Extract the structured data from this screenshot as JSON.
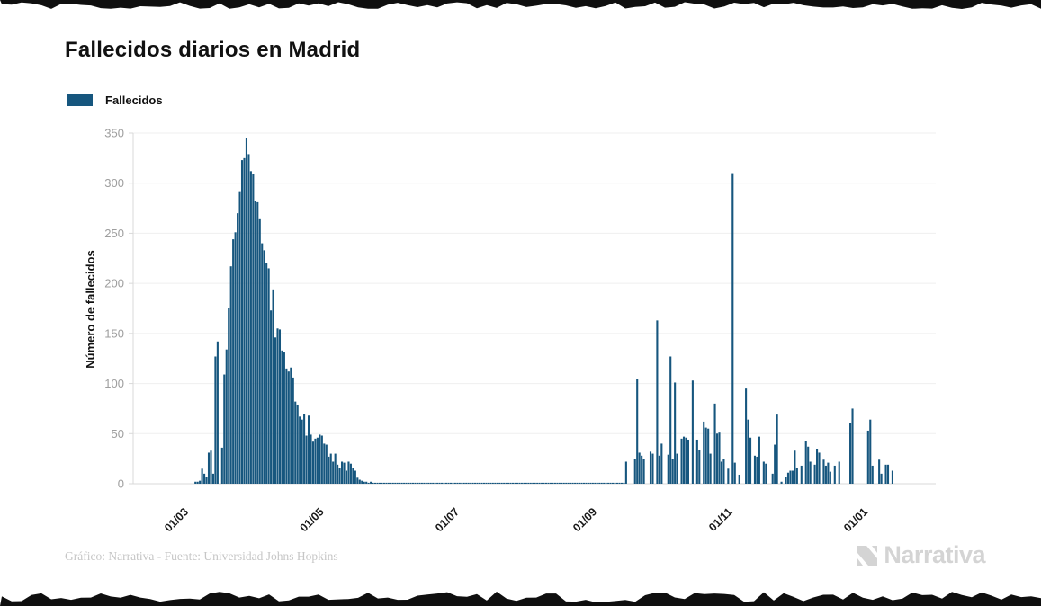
{
  "title": "Fallecidos diarios en Madrid",
  "legend": {
    "label": "Fallecidos"
  },
  "footer": {
    "credit": "Gráfico: Narrativa - Fuente: Universidad Johns Hopkins",
    "brand": "Narrativa"
  },
  "colors": {
    "bar": "#16567e",
    "grid": "#efefef",
    "axis": "#d9d9d9",
    "ytick_text": "#9e9e9e",
    "xtick_text": "#1a1a1a",
    "torn_edge": "#0f0f0f"
  },
  "chart_data": {
    "type": "bar",
    "title": "Fallecidos diarios en Madrid",
    "xlabel": "",
    "ylabel": "Número de fallecidos",
    "ylim": [
      0,
      350
    ],
    "yticks": [
      0,
      50,
      100,
      150,
      200,
      250,
      300,
      350
    ],
    "grid": "horizontal",
    "legend_position": "top-left",
    "x_ticks": [
      {
        "label": "01/03",
        "day_offset": 0
      },
      {
        "label": "01/05",
        "day_offset": 61
      },
      {
        "label": "01/07",
        "day_offset": 122
      },
      {
        "label": "01/09",
        "day_offset": 184
      },
      {
        "label": "01/11",
        "day_offset": 245
      },
      {
        "label": "01/01",
        "day_offset": 306
      }
    ],
    "start_date": "2020-03-10",
    "start_day_offset": 9,
    "series": [
      {
        "name": "Fallecidos",
        "values": [
          2,
          2,
          3,
          15,
          10,
          7,
          31,
          33,
          10,
          127,
          142,
          0,
          36,
          109,
          134,
          175,
          217,
          244,
          251,
          270,
          292,
          323,
          325,
          345,
          329,
          312,
          309,
          282,
          281,
          264,
          240,
          233,
          220,
          215,
          173,
          194,
          146,
          155,
          154,
          133,
          131,
          115,
          112,
          116,
          106,
          82,
          79,
          67,
          64,
          70,
          48,
          68,
          49,
          42,
          45,
          46,
          49,
          48,
          40,
          39,
          27,
          30,
          22,
          30,
          19,
          16,
          22,
          21,
          13,
          22,
          20,
          16,
          13,
          6,
          4,
          3,
          2,
          2,
          1,
          2,
          1,
          1,
          1,
          1,
          1,
          1,
          1,
          1,
          1,
          1,
          1,
          1,
          1,
          1,
          1,
          1,
          1,
          1,
          1,
          1,
          1,
          1,
          1,
          1,
          1,
          1,
          1,
          1,
          1,
          1,
          1,
          1,
          1,
          1,
          1,
          1,
          1,
          1,
          1,
          1,
          1,
          1,
          1,
          1,
          1,
          1,
          1,
          1,
          1,
          1,
          1,
          1,
          1,
          1,
          1,
          1,
          1,
          1,
          1,
          1,
          1,
          1,
          1,
          1,
          1,
          1,
          1,
          1,
          1,
          1,
          1,
          1,
          1,
          1,
          1,
          1,
          1,
          1,
          1,
          1,
          1,
          1,
          1,
          1,
          1,
          1,
          1,
          1,
          1,
          1,
          1,
          1,
          1,
          1,
          1,
          1,
          1,
          1,
          1,
          1,
          1,
          1,
          1,
          1,
          1,
          1,
          1,
          1,
          1,
          1,
          1,
          1,
          1,
          1,
          22,
          0,
          0,
          0,
          25,
          105,
          31,
          28,
          25,
          0,
          0,
          32,
          30,
          0,
          163,
          28,
          40,
          0,
          0,
          29,
          127,
          25,
          101,
          30,
          0,
          45,
          47,
          46,
          44,
          0,
          103,
          0,
          44,
          34,
          0,
          62,
          56,
          55,
          30,
          0,
          80,
          50,
          51,
          22,
          25,
          0,
          15,
          0,
          310,
          21,
          0,
          9,
          0,
          0,
          95,
          64,
          46,
          0,
          28,
          27,
          47,
          0,
          22,
          20,
          0,
          0,
          10,
          39,
          69,
          0,
          2,
          0,
          7,
          11,
          13,
          13,
          33,
          16,
          0,
          18,
          0,
          43,
          37,
          22,
          0,
          19,
          35,
          31,
          0,
          24,
          18,
          21,
          12,
          0,
          18,
          0,
          22,
          0,
          0,
          0,
          0,
          61,
          75,
          0,
          0,
          0,
          0,
          0,
          0,
          53,
          64,
          18,
          0,
          0,
          24,
          10,
          0,
          19,
          19,
          0,
          13
        ]
      }
    ]
  }
}
